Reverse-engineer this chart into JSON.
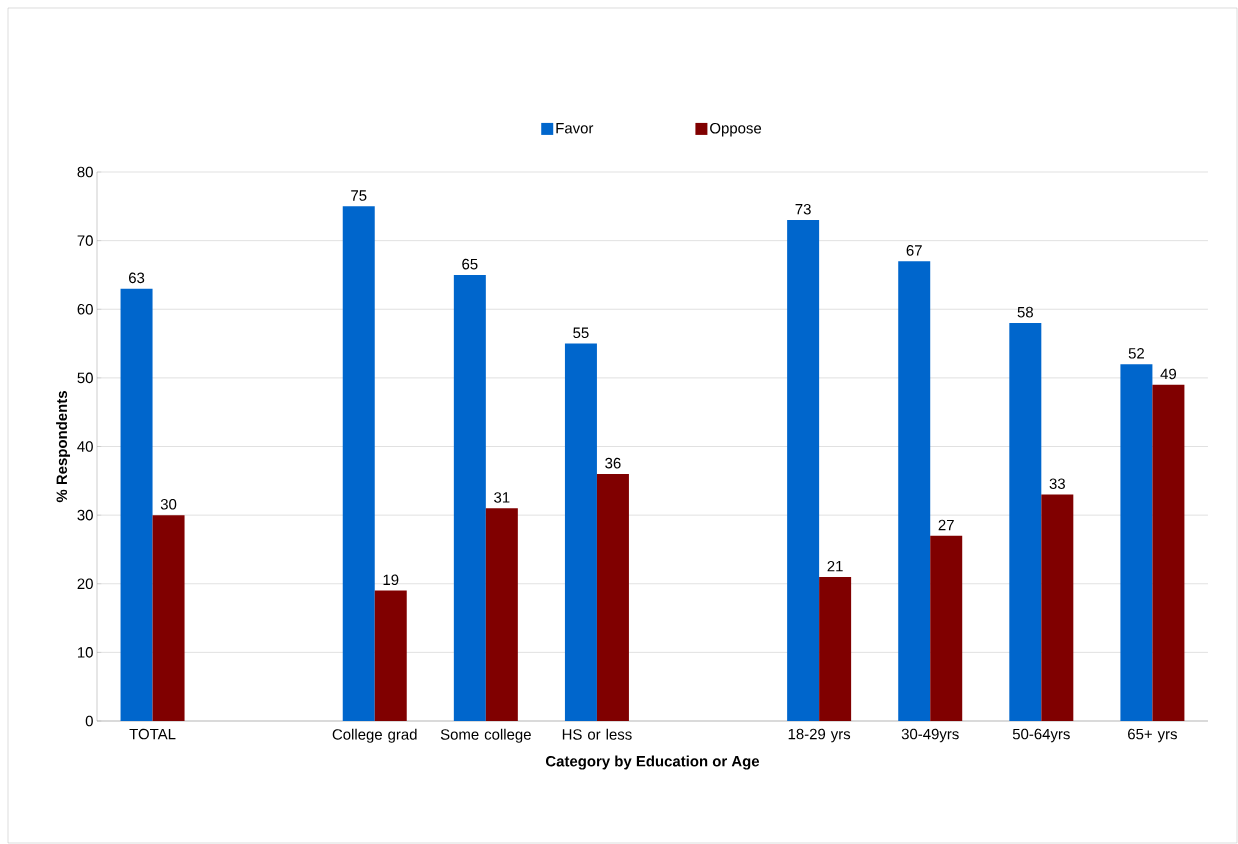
{
  "chart_data": {
    "type": "bar",
    "xlabel": "Category by Education or Age",
    "ylabel": "% Respondents",
    "categories": [
      "TOTAL",
      null,
      "College grad",
      "Some college",
      "HS or less",
      null,
      "18-29 yrs",
      "30-49yrs",
      "50-64yrs",
      "65+ yrs"
    ],
    "series": [
      {
        "name": "Favor",
        "color": "#0066cc",
        "values": [
          63,
          null,
          75,
          65,
          55,
          null,
          73,
          67,
          58,
          52
        ]
      },
      {
        "name": "Oppose",
        "color": "#800000",
        "values": [
          30,
          null,
          19,
          31,
          36,
          null,
          21,
          27,
          33,
          49
        ]
      }
    ],
    "ylim": [
      0,
      80
    ],
    "yticks": [
      0,
      10,
      20,
      30,
      40,
      50,
      60,
      70,
      80
    ],
    "grid": "y",
    "legend": "top",
    "data_labels": true
  }
}
